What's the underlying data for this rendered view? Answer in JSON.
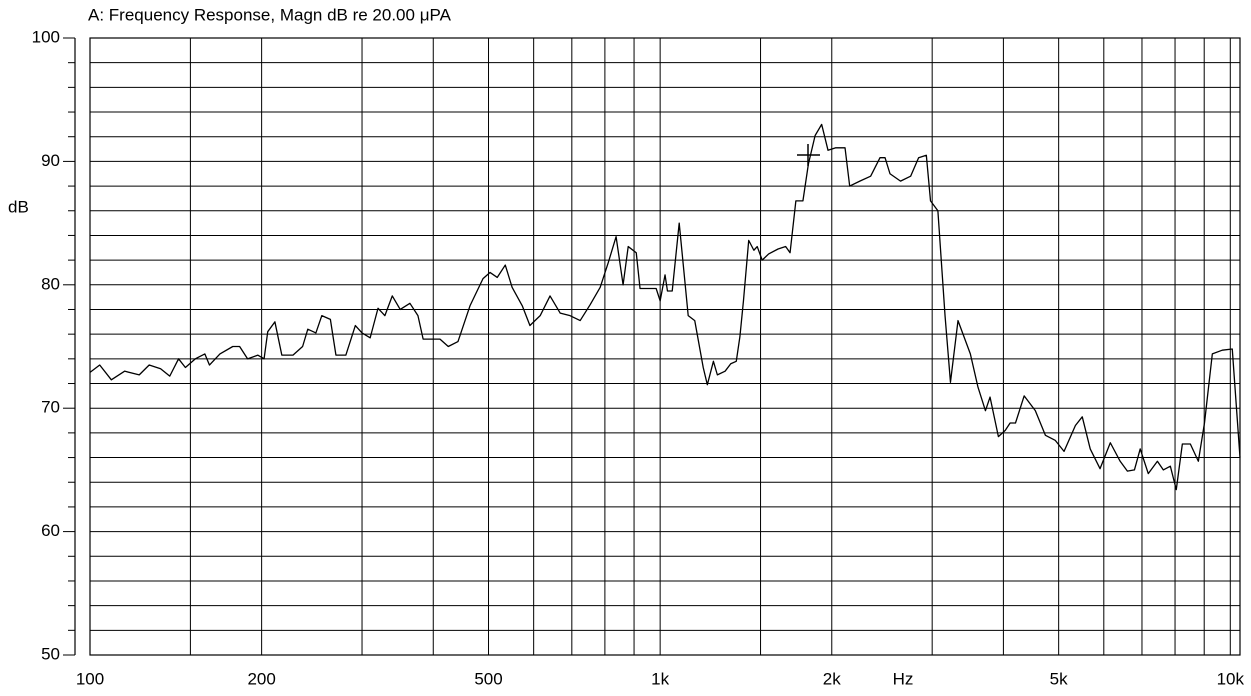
{
  "chart_data": {
    "type": "line",
    "title": "A: Frequency Response, Magn dB re 20.00 μPA",
    "ylabel": "dB",
    "xlabel": "Hz",
    "log_x": true,
    "grid": true,
    "color": "#000000",
    "xlim": [
      100,
      10400
    ],
    "ylim": [
      50,
      100
    ],
    "xticks": [
      100,
      200,
      500,
      {
        "value": 1000,
        "label": "1k"
      },
      {
        "value": 2000,
        "label": "2k"
      },
      {
        "value": 5000,
        "label": "5k"
      },
      {
        "value": 10000,
        "label": "10k"
      }
    ],
    "xminor": [
      150,
      300,
      400,
      600,
      700,
      800,
      900,
      1500,
      3000,
      4000,
      6000,
      7000,
      8000,
      9000
    ],
    "yticks": [
      50,
      60,
      70,
      80,
      90,
      100
    ],
    "yminor": [
      52,
      54,
      56,
      58,
      62,
      64,
      66,
      68,
      72,
      74,
      76,
      78,
      82,
      84,
      86,
      88,
      92,
      94,
      96,
      98
    ],
    "x": [
      100,
      104,
      109,
      115,
      122,
      127,
      133,
      138,
      143,
      147,
      153,
      159,
      162,
      169,
      178,
      183,
      189,
      197,
      202,
      205,
      211,
      217,
      227,
      236,
      241,
      249,
      255,
      264,
      270,
      281,
      292,
      300,
      310,
      320,
      329,
      339,
      350,
      364,
      376,
      384,
      411,
      425,
      442,
      464,
      489,
      503,
      518,
      535,
      550,
      573,
      591,
      616,
      641,
      668,
      695,
      724,
      754,
      785,
      811,
      837,
      861,
      879,
      908,
      922,
      984,
      1000,
      1020,
      1030,
      1050,
      1080,
      1120,
      1150,
      1190,
      1210,
      1240,
      1260,
      1300,
      1330,
      1360,
      1380,
      1400,
      1430,
      1460,
      1480,
      1510,
      1550,
      1610,
      1660,
      1690,
      1730,
      1780,
      1820,
      1870,
      1920,
      1970,
      2030,
      2110,
      2150,
      2240,
      2340,
      2430,
      2480,
      2530,
      2640,
      2750,
      2840,
      2930,
      2980,
      3070,
      3160,
      3230,
      3330,
      3500,
      3610,
      3720,
      3790,
      3920,
      4030,
      4110,
      4200,
      4350,
      4550,
      4740,
      4930,
      5110,
      5350,
      5500,
      5680,
      5910,
      6160,
      6410,
      6600,
      6790,
      6950,
      7180,
      7450,
      7630,
      7850,
      8040,
      8240,
      8510,
      8790,
      9010,
      9300,
      9680,
      10080,
      10400
    ],
    "values": [
      72.9,
      73.5,
      72.3,
      73.0,
      72.7,
      73.5,
      73.2,
      72.6,
      74.0,
      73.3,
      74.0,
      74.4,
      73.5,
      74.4,
      75.0,
      75.0,
      74.0,
      74.3,
      74.0,
      76.2,
      77.0,
      74.3,
      74.3,
      75.0,
      76.4,
      76.1,
      77.5,
      77.2,
      74.3,
      74.3,
      76.7,
      76.1,
      75.7,
      78.1,
      77.5,
      79.1,
      78.0,
      78.5,
      77.5,
      75.6,
      75.6,
      75.0,
      75.4,
      78.3,
      80.5,
      81.0,
      80.6,
      81.6,
      79.8,
      78.3,
      76.7,
      77.5,
      79.1,
      77.7,
      77.5,
      77.1,
      78.4,
      79.8,
      81.8,
      83.9,
      80.0,
      83.1,
      82.6,
      79.7,
      79.7,
      78.7,
      80.8,
      79.5,
      79.5,
      85.0,
      77.5,
      77.1,
      73.3,
      71.9,
      73.8,
      72.7,
      73.0,
      73.6,
      73.8,
      75.8,
      78.7,
      83.6,
      82.8,
      83.1,
      82.0,
      82.5,
      82.9,
      83.1,
      82.6,
      86.8,
      86.8,
      89.8,
      92.1,
      93.0,
      90.9,
      91.1,
      91.1,
      88.0,
      88.4,
      88.8,
      90.3,
      90.3,
      89.0,
      88.4,
      88.8,
      90.3,
      90.5,
      86.8,
      86.0,
      77.5,
      72.1,
      77.1,
      74.4,
      71.7,
      69.8,
      70.9,
      67.7,
      68.2,
      68.8,
      68.8,
      71.0,
      69.8,
      67.8,
      67.4,
      66.5,
      68.6,
      69.3,
      66.7,
      65.1,
      67.2,
      65.7,
      64.9,
      65.0,
      66.7,
      64.7,
      65.7,
      65.0,
      65.3,
      63.4,
      67.1,
      67.1,
      65.7,
      68.8,
      74.4,
      74.7,
      74.8,
      66.0
    ]
  }
}
